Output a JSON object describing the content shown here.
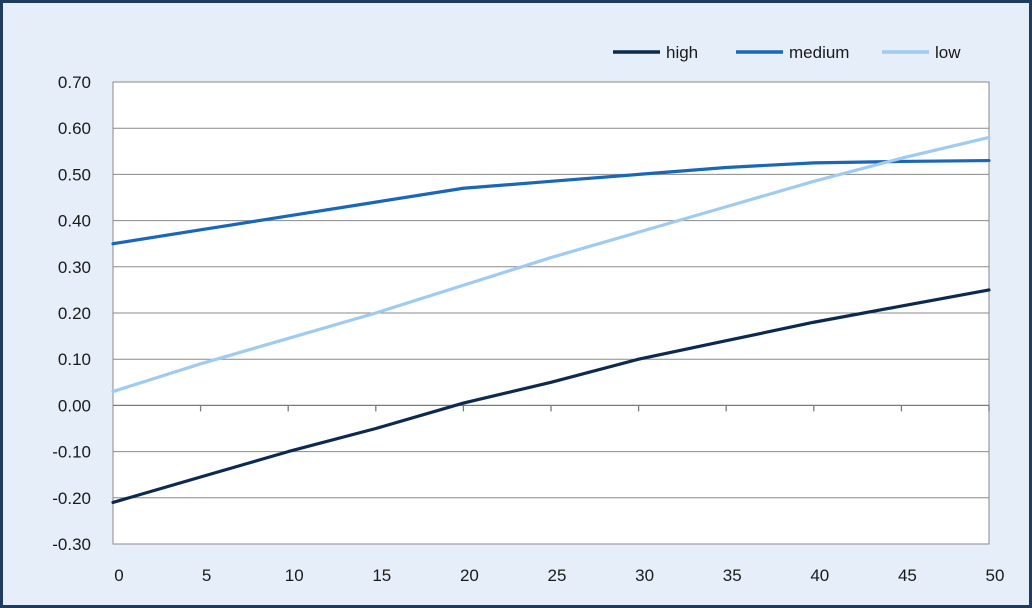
{
  "chart_data": {
    "type": "line",
    "title": "",
    "xlabel": "",
    "ylabel": "",
    "xlim": [
      0,
      50
    ],
    "ylim": [
      -0.3,
      0.7
    ],
    "x_ticks": [
      0,
      5,
      10,
      15,
      20,
      25,
      30,
      35,
      40,
      45,
      50
    ],
    "y_ticks": [
      -0.3,
      -0.2,
      -0.1,
      0.0,
      0.1,
      0.2,
      0.3,
      0.4,
      0.5,
      0.6,
      0.7
    ],
    "x_tick_labels": [
      "0",
      "5",
      "10",
      "15",
      "20",
      "25",
      "30",
      "35",
      "40",
      "45",
      "50"
    ],
    "y_tick_labels": [
      "-0.30",
      "-0.20",
      "-0.10",
      "0.00",
      "0.10",
      "0.20",
      "0.30",
      "0.40",
      "0.50",
      "0.60",
      "0.70"
    ],
    "grid": "horizontal",
    "legend_position": "top-right",
    "x": [
      0,
      5,
      10,
      15,
      20,
      25,
      30,
      35,
      40,
      45,
      50
    ],
    "series": [
      {
        "name": "high",
        "color": "#0c2a4f",
        "values": [
          -0.21,
          -0.155,
          -0.1,
          -0.05,
          0.005,
          0.05,
          0.1,
          0.14,
          0.18,
          0.215,
          0.25
        ]
      },
      {
        "name": "medium",
        "color": "#1a66b8",
        "values": [
          0.35,
          0.38,
          0.41,
          0.44,
          0.47,
          0.485,
          0.5,
          0.515,
          0.525,
          0.528,
          0.53
        ]
      },
      {
        "name": "low",
        "color": "#9fcbf0",
        "values": [
          0.03,
          0.09,
          0.145,
          0.2,
          0.26,
          0.32,
          0.375,
          0.43,
          0.485,
          0.535,
          0.58
        ]
      }
    ]
  }
}
